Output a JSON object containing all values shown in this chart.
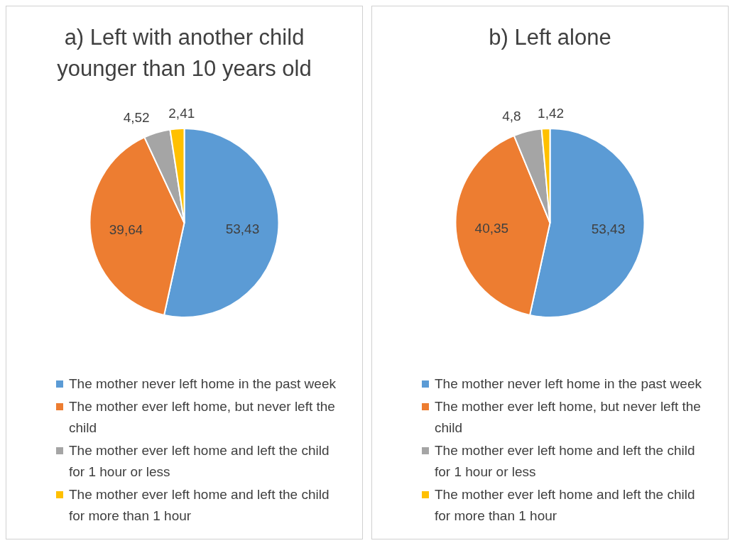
{
  "chart_data": [
    {
      "type": "pie",
      "title": "a) Left with another child younger than 10 years old",
      "categories": [
        "The mother never left home in the past week",
        "The mother ever left home, but never left the child",
        "The mother ever left home and left the child for 1 hour or less",
        "The mother ever left home and left the child for more than 1 hour"
      ],
      "values": [
        53.43,
        39.64,
        4.52,
        2.41
      ],
      "value_labels": [
        "53,43",
        "39,64",
        "4,52",
        "2,41"
      ],
      "colors": [
        "#5b9bd5",
        "#ed7d31",
        "#a5a5a5",
        "#ffc000"
      ],
      "legend": "bottom"
    },
    {
      "type": "pie",
      "title": "b) Left alone",
      "categories": [
        "The mother never left home in the past week",
        "The mother ever left home, but never left the child",
        "The mother ever left home and left the child for 1 hour or less",
        "The mother ever left home and left the child for more than 1 hour"
      ],
      "values": [
        53.43,
        40.35,
        4.8,
        1.42
      ],
      "value_labels": [
        "53,43",
        "40,35",
        "4,8",
        "1,42"
      ],
      "colors": [
        "#5b9bd5",
        "#ed7d31",
        "#a5a5a5",
        "#ffc000"
      ],
      "legend": "bottom"
    }
  ]
}
